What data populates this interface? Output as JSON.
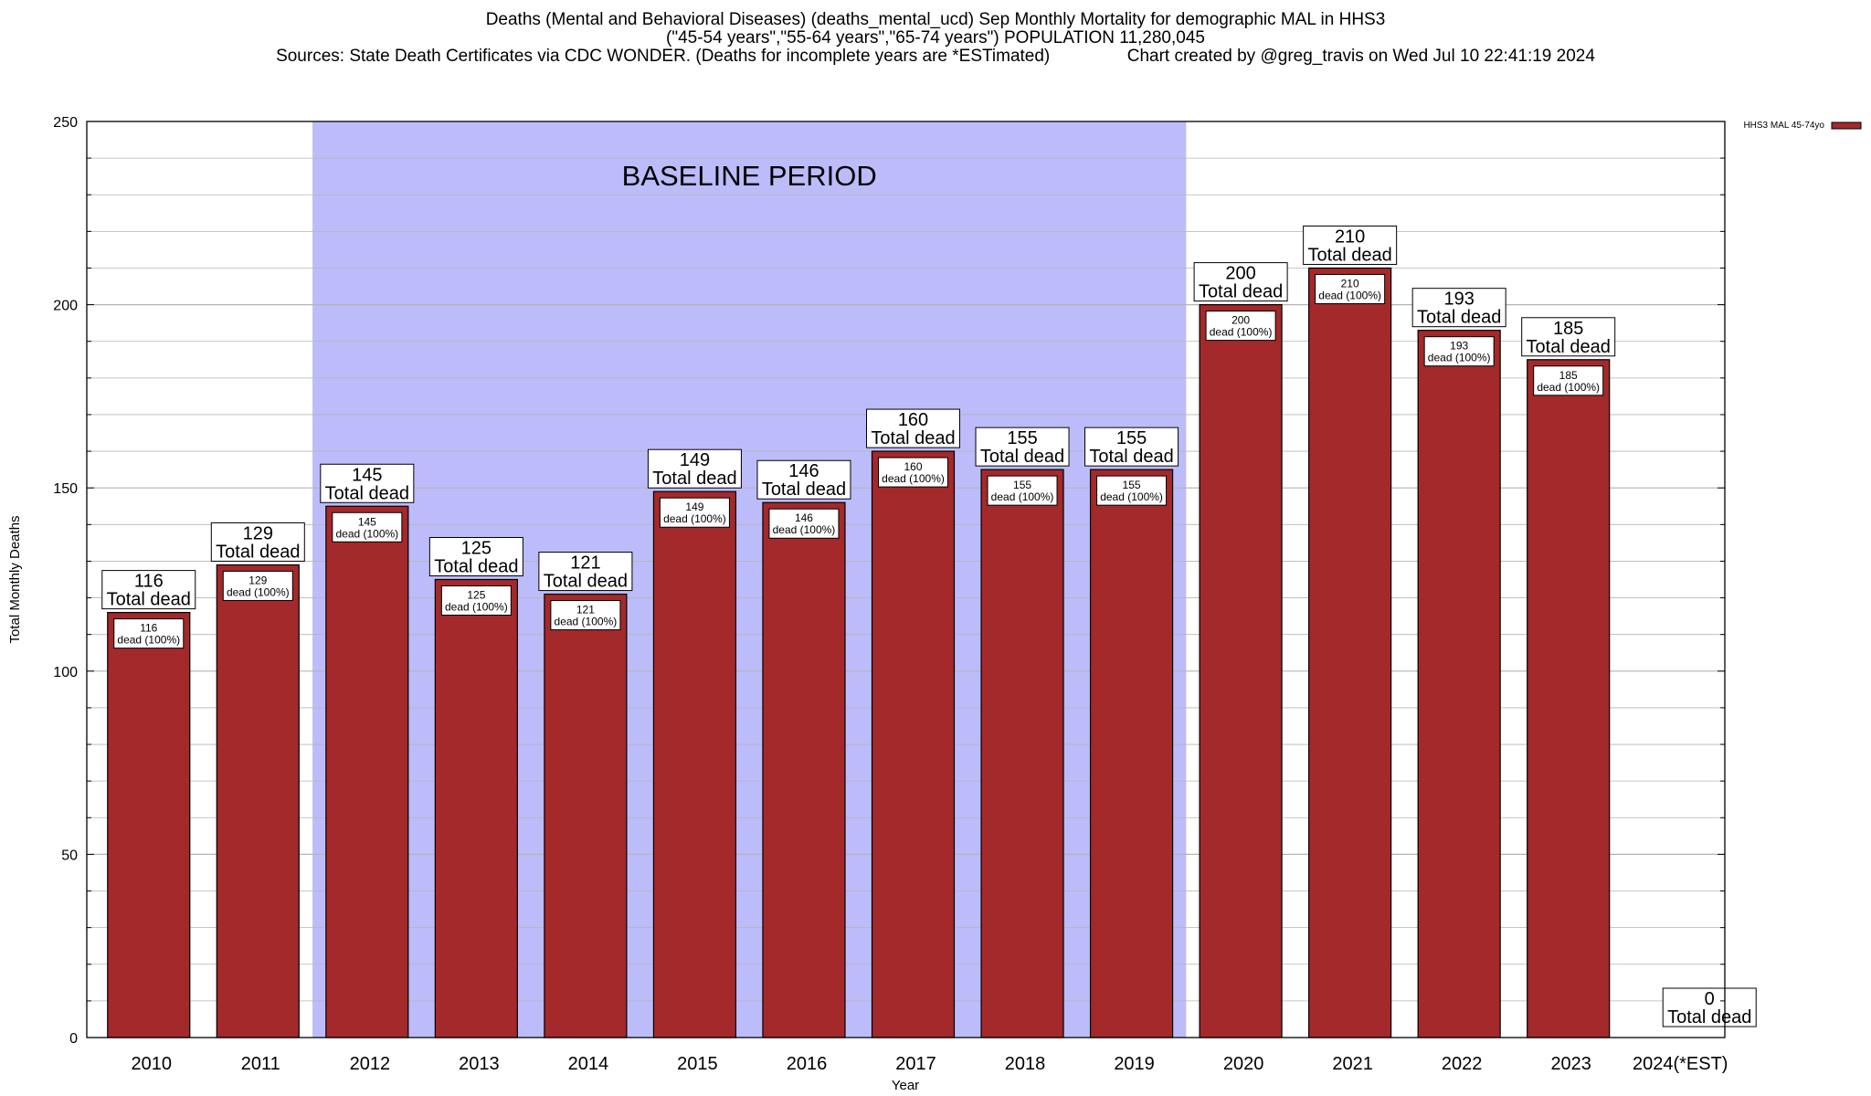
{
  "title_lines": [
    "Deaths (Mental and Behavioral Diseases) (deaths_mental_ucd) Sep Monthly Mortality for demographic MAL in HHS3",
    "(\"45-54 years\",\"55-64 years\",\"65-74 years\") POPULATION 11,280,045",
    "Sources: State Death Certificates via CDC WONDER. (Deaths for incomplete years are *ESTimated)                Chart created by @greg_travis on Wed Jul 10 22:41:19 2024"
  ],
  "baseline_label": "BASELINE PERIOD",
  "colors": {
    "bar": "#a3292b",
    "baseline": "#bcbcfa",
    "grid": "#b4b4b4"
  },
  "chart_data": {
    "type": "bar",
    "categories": [
      "2010",
      "2011",
      "2012",
      "2013",
      "2014",
      "2015",
      "2016",
      "2017",
      "2018",
      "2019",
      "2020",
      "2021",
      "2022",
      "2023",
      "2024(*EST)"
    ],
    "series": [
      {
        "name": "HHS3 MAL 45-74yo",
        "values": [
          116,
          129,
          145,
          125,
          121,
          149,
          146,
          160,
          155,
          155,
          200,
          210,
          193,
          185,
          0
        ]
      }
    ],
    "ylabel": "Total Monthly Deaths",
    "xlabel": "Year",
    "ylim": [
      0,
      250
    ],
    "yticks": [
      0,
      50,
      100,
      150,
      200,
      250
    ],
    "baseline_period": [
      "2012",
      "2019"
    ],
    "top_label_suffix": "Total dead",
    "inner_label_suffix": "dead (100%)",
    "grid": true,
    "legend_position": "top-right"
  }
}
